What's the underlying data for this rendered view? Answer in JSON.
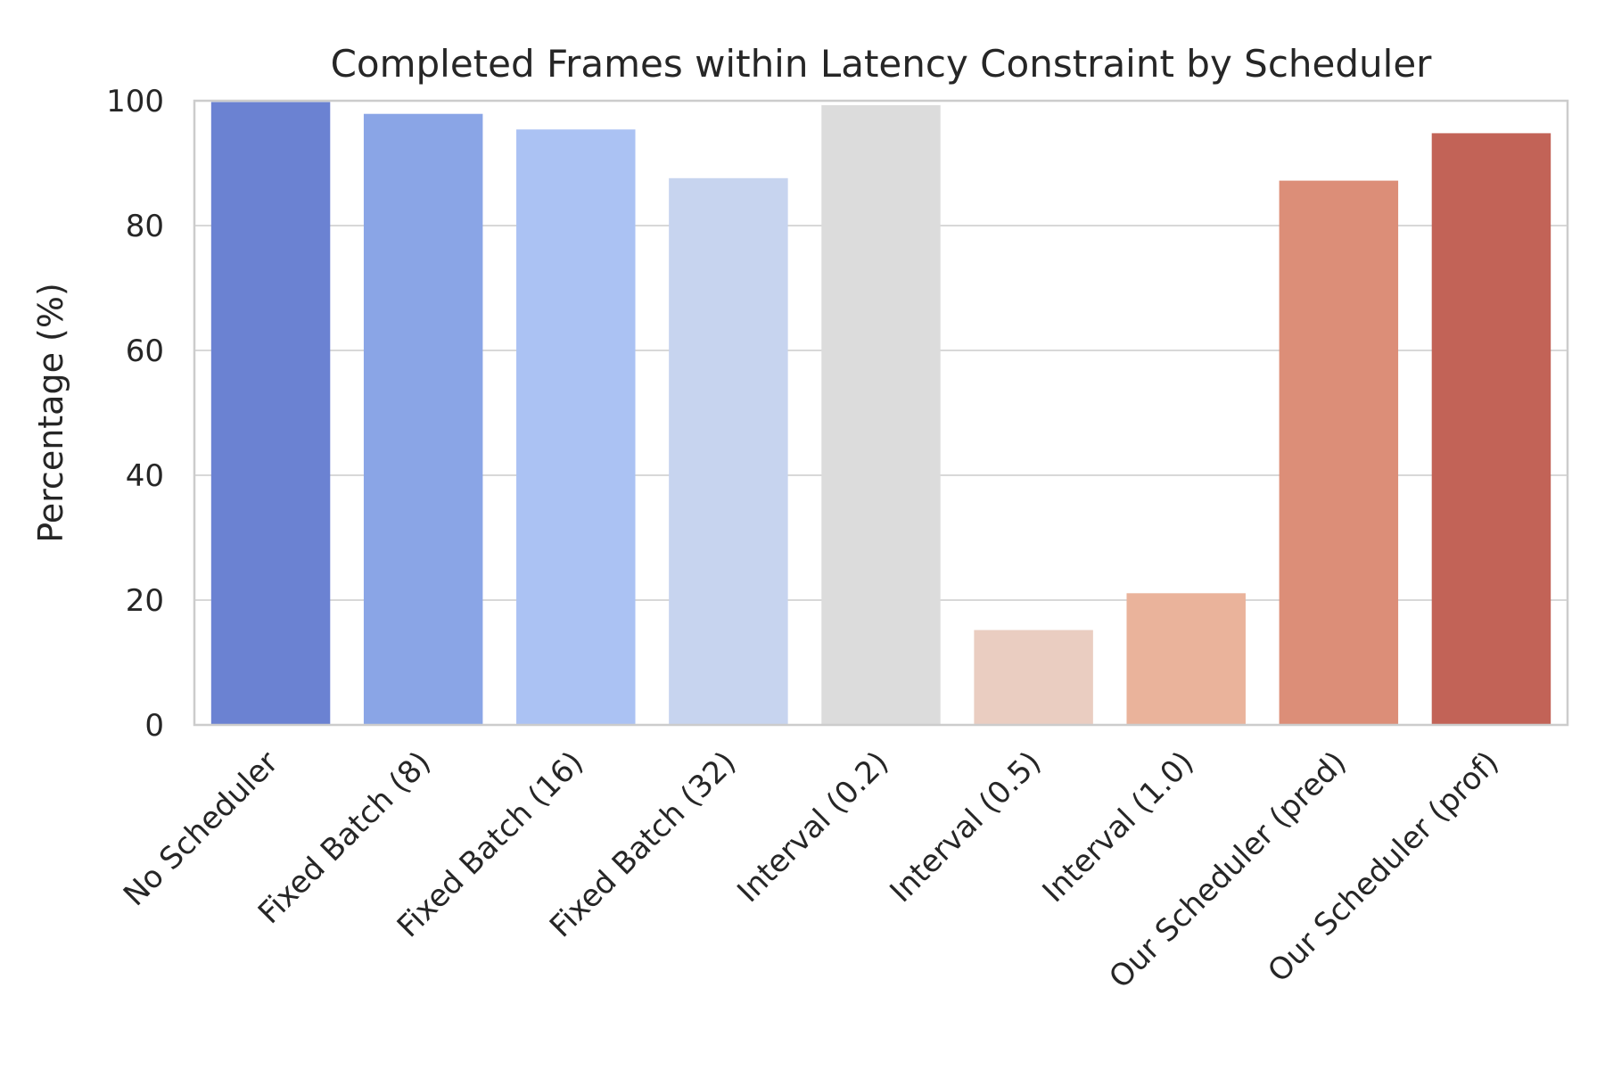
{
  "chart_data": {
    "type": "bar",
    "title": "Completed Frames within Latency Constraint by Scheduler",
    "xlabel": "",
    "ylabel": "Percentage (%)",
    "ylim": [
      0,
      100
    ],
    "yticks": [
      0,
      20,
      40,
      60,
      80,
      100
    ],
    "grid": "horizontal",
    "categories": [
      "No Scheduler",
      "Fixed Batch (8)",
      "Fixed Batch (16)",
      "Fixed Batch (32)",
      "Interval (0.2)",
      "Interval (0.5)",
      "Interval (1.0)",
      "Our Scheduler (pred)",
      "Our Scheduler (prof)"
    ],
    "values": [
      99.8,
      97.9,
      95.4,
      87.6,
      99.3,
      15.2,
      21.1,
      87.2,
      94.8
    ],
    "colors": [
      "#6b82d2",
      "#8aa5e6",
      "#abc2f3",
      "#c7d4ef",
      "#dcdcdc",
      "#eacdc1",
      "#eab39b",
      "#dc8e78",
      "#c26357"
    ]
  }
}
